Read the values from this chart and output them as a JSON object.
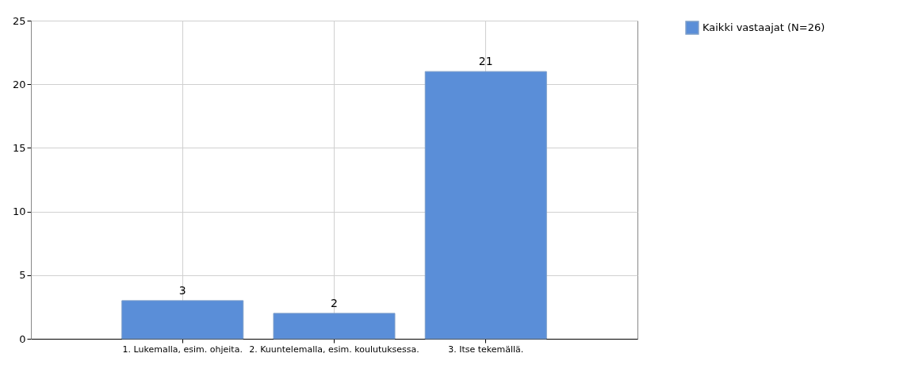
{
  "chart_data": {
    "type": "bar",
    "categories": [
      "1. Lukemalla, esim. ohjeita.",
      "2. Kuuntelemalla, esim. koulutuksessa.",
      "3. Itse tekemällä."
    ],
    "series": [
      {
        "name": "Kaikki vastaajat (N=26)",
        "color": "#5a8ed8",
        "values": [
          3,
          2,
          21
        ]
      }
    ],
    "ylim": [
      0,
      25
    ],
    "yticks": [
      0,
      5,
      10,
      15,
      20,
      25
    ],
    "grid": true,
    "legend": "top right",
    "data_labels": true
  }
}
